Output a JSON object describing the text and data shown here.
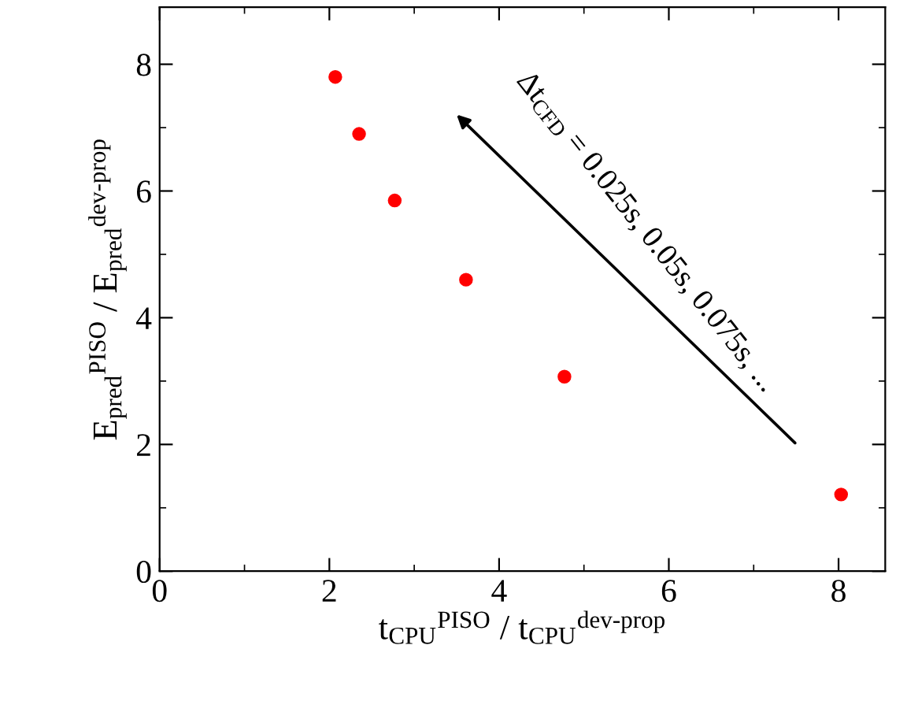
{
  "chart_data": {
    "type": "scatter",
    "xlabel": "t$_{CPU}$$^{PISO}$ / t$_{CPU}$$^{dev-prop}$",
    "ylabel": "E$_{pred}$$^{PISO}$ / E$_{pred}$$^{dev-prop}$",
    "x": [
      2.07,
      2.35,
      2.77,
      3.61,
      4.77,
      8.03
    ],
    "series": [
      {
        "color": "#ff0000",
        "values": [
          7.8,
          6.9,
          5.85,
          4.6,
          3.07,
          1.21
        ]
      }
    ],
    "marker": "circle",
    "xlim": [
      0,
      8.55
    ],
    "ylim": [
      0,
      8.9
    ],
    "xticks": [
      0,
      2,
      4,
      6,
      8
    ],
    "yticks": [
      0,
      2,
      4,
      6,
      8
    ],
    "grid": false,
    "legend": false,
    "annotations": [
      "Δt$_{CFD}$ = 0.025s, 0.05s, 0.075s, ..."
    ]
  }
}
